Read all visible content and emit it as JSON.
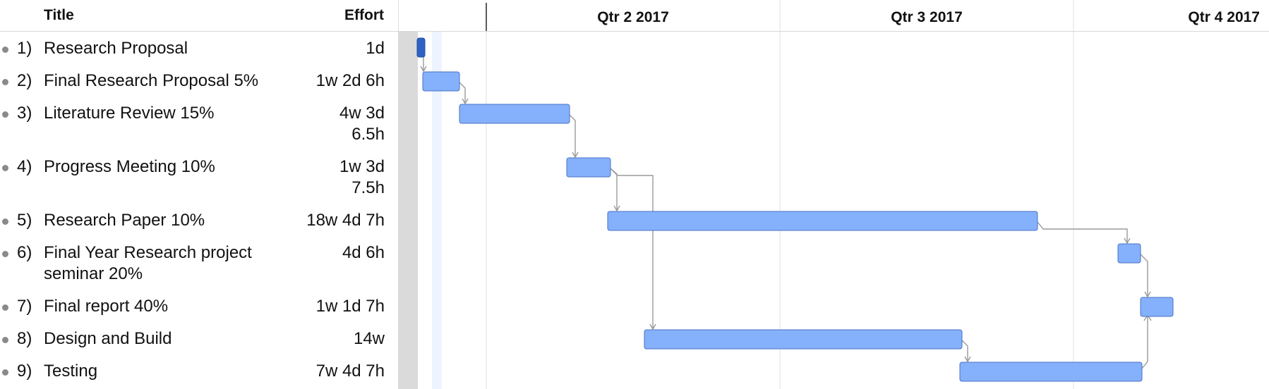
{
  "columns": {
    "title": "Title",
    "effort": "Effort"
  },
  "quarters": [
    "Qtr 2 2017",
    "Qtr 3 2017",
    "Qtr 4 2017"
  ],
  "tasks": [
    {
      "num": "1)",
      "title": "Research Proposal",
      "effort": "1d",
      "milestone": true
    },
    {
      "num": "2)",
      "title": "Final Research Proposal 5%",
      "effort": "1w 2d 6h"
    },
    {
      "num": "3)",
      "title": "Literature Review 15%",
      "effort": "4w 3d 6.5h"
    },
    {
      "num": "4)",
      "title": "Progress Meeting 10%",
      "effort": "1w 3d 7.5h"
    },
    {
      "num": "5)",
      "title": "Research Paper 10%",
      "effort": "18w 4d 7h"
    },
    {
      "num": "6)",
      "title": "Final Year Research project seminar 20%",
      "effort": "4d 6h"
    },
    {
      "num": "7)",
      "title": "Final report 40%",
      "effort": "1w 1d 7h"
    },
    {
      "num": "8)",
      "title": "Design and Build",
      "effort": "14w"
    },
    {
      "num": "9)",
      "title": "Testing",
      "effort": "7w 4d 7h"
    }
  ],
  "colors": {
    "bar": "#85b0fb",
    "bar_border": "#4a72c4",
    "milestone": "#2e63c4",
    "arrow": "#999999"
  }
}
